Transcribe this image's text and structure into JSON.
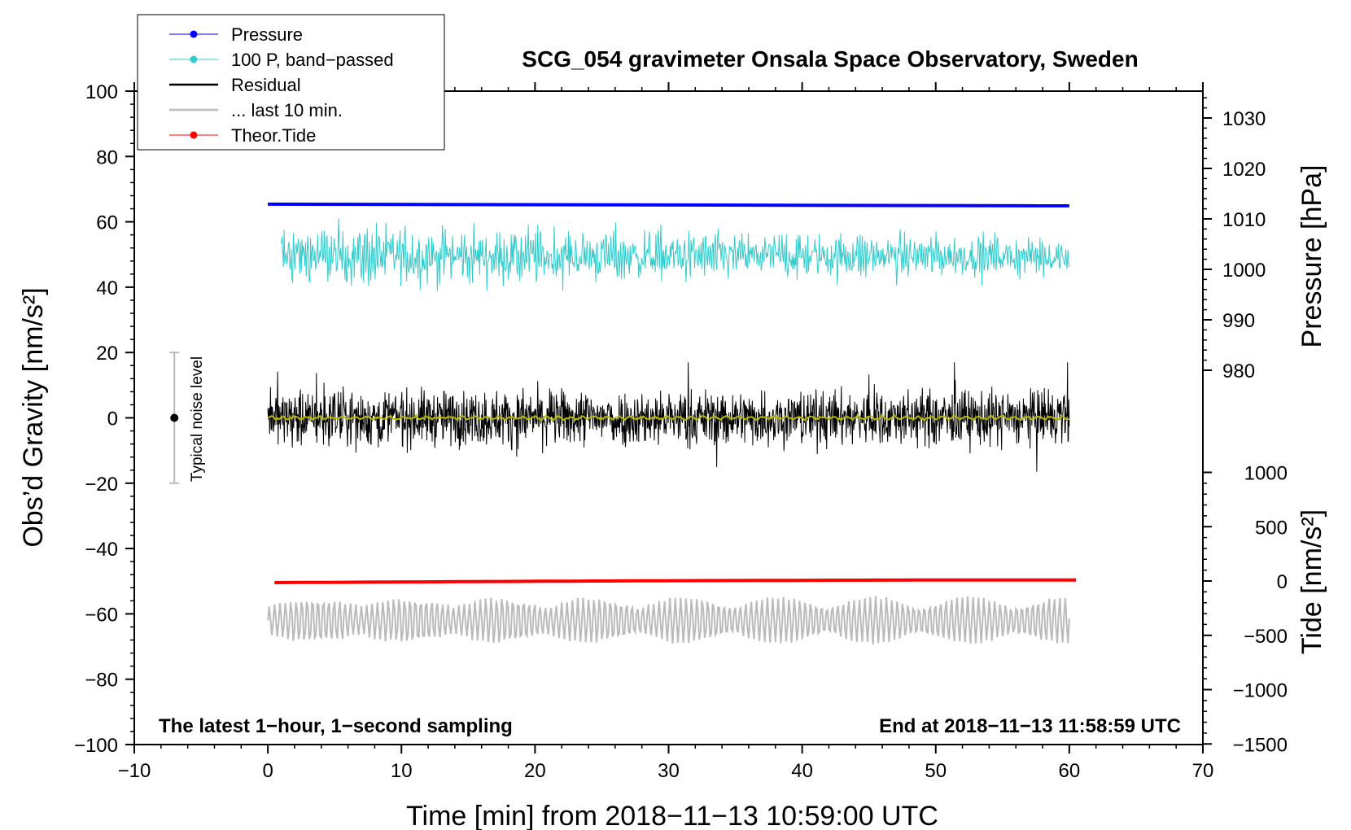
{
  "chart_data": {
    "type": "line",
    "title": "SCG_054 gravimeter Onsala Space Observatory, Sweden",
    "xlabel": "Time [min] from 2018−11−13 10:59:00 UTC",
    "ylabel_left": "Obs’d Gravity [nm/s²]",
    "ylabel_right_pressure": "Pressure [hPa]",
    "ylabel_right_tide": "Tide [nm/s²]",
    "xlim": [
      -10,
      70
    ],
    "ylim": [
      -100,
      100
    ],
    "pressure_axis_ticks": [
      1030,
      1020,
      1010,
      1000,
      990,
      980
    ],
    "tide_axis_ticks": [
      1000,
      500,
      0,
      -500,
      -1000,
      -1500
    ],
    "x_tick_labels": [
      "−10",
      "0",
      "10",
      "20",
      "30",
      "40",
      "50",
      "60",
      "70"
    ],
    "y_tick_labels": [
      "100",
      "80",
      "60",
      "40",
      "20",
      "0",
      "−20",
      "−40",
      "−60",
      "−80",
      "−100"
    ],
    "pressure_tick_labels": [
      "1030",
      "1020",
      "1010",
      "1000",
      "990",
      "980"
    ],
    "tide_tick_labels": [
      "1000",
      "500",
      "0",
      "−500",
      "−1000",
      "−1500"
    ],
    "annotation_left": "The latest 1−hour, 1−second sampling",
    "annotation_right": "End at 2018−11−13 11:58:59 UTC",
    "noise_label": "Typical noise level",
    "noise_bar": {
      "x": -7,
      "y_center": 0,
      "y_min": -20,
      "y_max": 20
    },
    "legend_placement": "top-left, outside plot",
    "legend": [
      {
        "label": "Pressure",
        "color": "#0000ff",
        "marker": true
      },
      {
        "label": "100 P, band−passed",
        "color": "#33cccc",
        "marker": true
      },
      {
        "label": "Residual",
        "color": "#000000",
        "marker": false
      },
      {
        "label": "... last 10 min.",
        "color": "#bbbbbb",
        "marker": false
      },
      {
        "label": "Theor.Tide",
        "color": "#ff0000",
        "marker": true
      }
    ],
    "series": [
      {
        "name": "Pressure",
        "color": "#0000ff",
        "x_range": [
          0,
          60
        ],
        "plot_level_start": 65.4,
        "plot_level_end": 64.9,
        "hPa_start": 1011.3,
        "hPa_end": 1011.0
      },
      {
        "name": "100 P, band−passed",
        "color": "#33cccc",
        "x_range": [
          1,
          60
        ],
        "center": 49.5,
        "amplitude": 7,
        "min": 34,
        "max": 64
      },
      {
        "name": "Residual",
        "color": "#000000",
        "x_range": [
          0,
          60
        ],
        "center": 0,
        "amplitude": 6,
        "min": -16.5,
        "max": 17
      },
      {
        "name": "smoothed residual",
        "color": "#b8b800",
        "x_range": [
          0,
          60
        ],
        "center": 0,
        "amplitude": 0.6
      },
      {
        "name": "Theor.Tide",
        "color": "#ff0000",
        "x_range": [
          0.5,
          60.5
        ],
        "tide_start": -15,
        "tide_end": 10
      },
      {
        "name": "... last 10 min.",
        "color": "#bbbbbb",
        "x_range": [
          0,
          60
        ],
        "center": -62,
        "amplitude": 6,
        "min": -76.5,
        "max": -51
      }
    ]
  }
}
